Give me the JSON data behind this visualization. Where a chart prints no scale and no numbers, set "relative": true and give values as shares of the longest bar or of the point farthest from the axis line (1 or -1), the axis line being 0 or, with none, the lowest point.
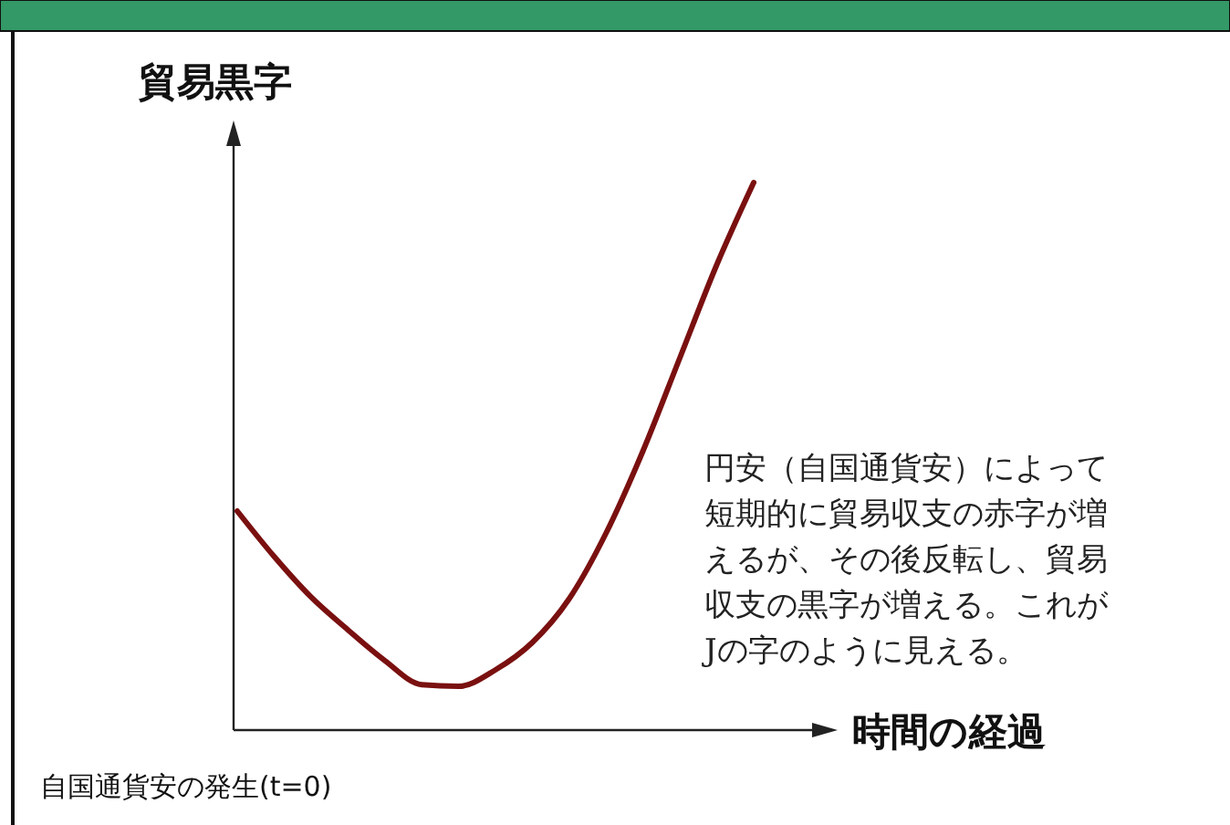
{
  "chart_data": {
    "type": "line",
    "relative": true,
    "ylabel": "貿易黒字",
    "xlabel": "時間の経過",
    "categories": [
      null,
      null,
      null,
      null,
      null,
      null,
      null,
      null,
      null,
      null,
      null,
      null,
      null,
      null,
      null
    ],
    "series": [
      {
        "color": "#7a1010",
        "values": [
          0.4,
          0.317,
          0.243,
          0.183,
          0.127,
          0.083,
          0.08,
          0.11,
          0.16,
          0.24,
          0.36,
          0.51,
          0.68,
          0.85,
          1
        ]
      }
    ],
    "annotations": [
      "円安（自国通貨安）によって短期的に貿易収支の赤字が増えるが、その後反転し、貿易収支の黒字が増える。これがJの字のように見える。",
      "自国通貨安の発生(t=0)"
    ]
  }
}
